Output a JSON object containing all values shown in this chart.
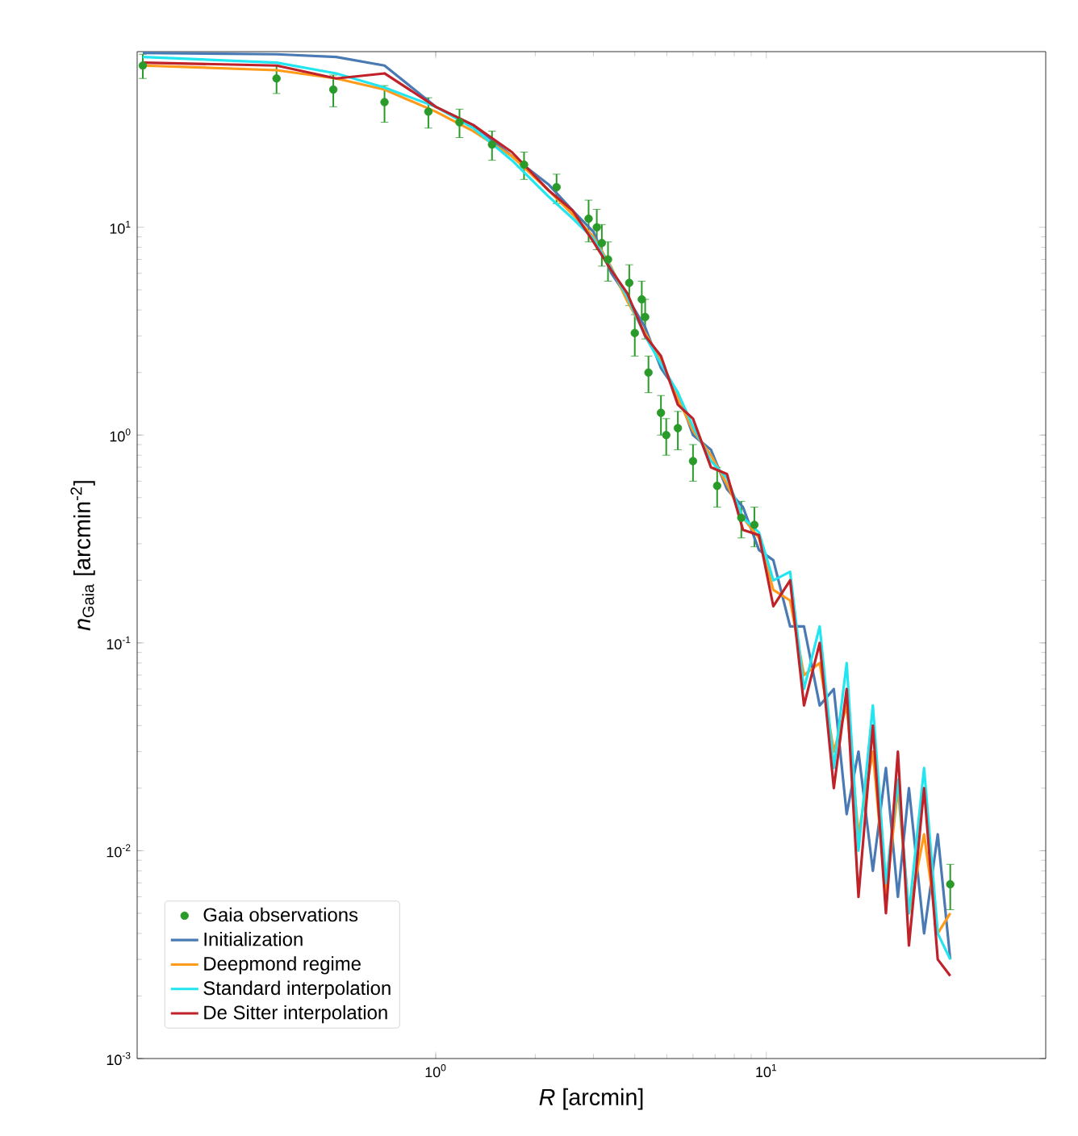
{
  "chart_data": {
    "type": "line",
    "xlabel": "*R* [arcmin]",
    "ylabel": "*n*$_{Gaia}$ [arcmin$^{-2}$]",
    "log": "xy",
    "grid": false,
    "legend": "bottom left",
    "xlim": [
      0.125,
      70
    ],
    "ylim": [
      0.001,
      70
    ],
    "xticks": [
      {
        "value": 1,
        "label": "10$^{0}$"
      },
      {
        "value": 10,
        "label": "10$^{1}$"
      }
    ],
    "yticks": [
      {
        "value": 0.001,
        "label": "10$^{-3}$"
      },
      {
        "value": 0.01,
        "label": "10$^{-2}$"
      },
      {
        "value": 0.1,
        "label": "10$^{-1}$"
      },
      {
        "value": 1,
        "label": "10$^{0}$"
      },
      {
        "value": 10,
        "label": "10$^{1}$"
      }
    ],
    "series": [
      {
        "name": "Gaia observations",
        "color": "#2a9a2a",
        "type": "scatter",
        "marker": "circle",
        "x": [
          0.13,
          0.33,
          0.49,
          0.7,
          0.95,
          1.18,
          1.48,
          1.85,
          2.32,
          2.9,
          3.07,
          3.18,
          3.32,
          3.85,
          4.2,
          4.3,
          4.0,
          4.4,
          4.8,
          5.4,
          4.98,
          6.0,
          7.1,
          8.4,
          9.2,
          36
        ],
        "values": [
          60,
          52,
          46,
          40,
          36,
          32,
          25,
          20,
          15.6,
          11,
          10,
          8.4,
          7.0,
          5.4,
          4.5,
          3.7,
          3.1,
          2.0,
          1.28,
          1.08,
          1.0,
          0.75,
          0.57,
          0.4,
          0.37,
          0.0069
        ],
        "errors": [
          [
            52,
            68
          ],
          [
            44,
            60
          ],
          [
            38,
            54
          ],
          [
            32,
            48
          ],
          [
            30,
            42
          ],
          [
            27,
            37
          ],
          [
            21,
            29
          ],
          [
            17,
            23
          ],
          [
            13,
            18
          ],
          [
            8.5,
            13.5
          ],
          [
            7.8,
            12.2
          ],
          [
            6.5,
            10.3
          ],
          [
            5.5,
            8.5
          ],
          [
            4.2,
            6.6
          ],
          [
            3.5,
            5.5
          ],
          [
            2.9,
            4.5
          ],
          [
            2.4,
            3.8
          ],
          [
            1.6,
            2.4
          ],
          [
            1.0,
            1.55
          ],
          [
            0.85,
            1.3
          ],
          [
            0.8,
            1.2
          ],
          [
            0.6,
            0.9
          ],
          [
            0.45,
            0.7
          ],
          [
            0.32,
            0.48
          ],
          [
            0.29,
            0.45
          ],
          [
            0.0052,
            0.0086
          ]
        ]
      },
      {
        "name": "Initialization",
        "color": "#4a7ab4",
        "x": [
          0.13,
          0.33,
          0.5,
          0.7,
          1.0,
          1.3,
          1.7,
          2.2,
          2.6,
          3.0,
          3.4,
          3.8,
          4.3,
          4.8,
          5.4,
          6.0,
          6.8,
          7.6,
          8.5,
          9.5,
          10.5,
          11.8,
          13,
          14.5,
          16,
          17.5,
          19,
          21,
          23,
          25,
          27,
          30,
          33,
          36
        ],
        "values": [
          69,
          68,
          66,
          60,
          38,
          31,
          22,
          16,
          12,
          9.5,
          6,
          4.6,
          3.3,
          2.1,
          1.6,
          1.0,
          0.85,
          0.55,
          0.45,
          0.28,
          0.25,
          0.12,
          0.12,
          0.05,
          0.06,
          0.015,
          0.03,
          0.008,
          0.025,
          0.006,
          0.02,
          0.004,
          0.012,
          0.003
        ]
      },
      {
        "name": "Deepmond regime",
        "color": "#ff9a1a",
        "x": [
          0.13,
          0.33,
          0.5,
          0.7,
          1.0,
          1.3,
          1.7,
          2.2,
          2.6,
          3.0,
          3.4,
          3.8,
          4.3,
          4.8,
          5.4,
          6.0,
          6.8,
          7.6,
          8.5,
          9.5,
          10.5,
          11.8,
          13,
          14.5,
          16,
          17.5,
          19,
          21,
          23,
          25,
          27,
          30,
          33,
          36
        ],
        "values": [
          60,
          57,
          52,
          46,
          36,
          29,
          22,
          15,
          11.5,
          9,
          6.4,
          4.4,
          3.1,
          2.3,
          1.5,
          1.05,
          0.8,
          0.58,
          0.4,
          0.32,
          0.18,
          0.16,
          0.07,
          0.08,
          0.03,
          0.05,
          0.012,
          0.03,
          0.006,
          0.02,
          0.005,
          0.012,
          0.004,
          0.005
        ]
      },
      {
        "name": "Standard interpolation",
        "color": "#22e5f0",
        "x": [
          0.13,
          0.33,
          0.5,
          0.7,
          1.0,
          1.3,
          1.7,
          2.2,
          2.6,
          3.0,
          3.4,
          3.8,
          4.3,
          4.8,
          5.4,
          6.0,
          6.8,
          7.6,
          8.5,
          9.5,
          10.5,
          11.8,
          13,
          14.5,
          16,
          17.5,
          19,
          21,
          23,
          25,
          27,
          30,
          33,
          36
        ],
        "values": [
          66,
          62,
          55,
          47,
          38,
          30,
          21,
          14,
          11,
          8.8,
          6.3,
          4.6,
          3.0,
          2.2,
          1.6,
          1.1,
          0.75,
          0.62,
          0.4,
          0.34,
          0.2,
          0.22,
          0.06,
          0.12,
          0.025,
          0.08,
          0.01,
          0.05,
          0.007,
          0.022,
          0.005,
          0.025,
          0.004,
          0.003
        ]
      },
      {
        "name": "De Sitter interpolation",
        "color": "#c0222a",
        "x": [
          0.13,
          0.33,
          0.5,
          0.7,
          1.0,
          1.3,
          1.7,
          2.2,
          2.6,
          3.0,
          3.4,
          3.8,
          4.3,
          4.8,
          5.4,
          6.0,
          6.8,
          7.6,
          8.5,
          9.5,
          10.5,
          11.8,
          13,
          14.5,
          16,
          17.5,
          19,
          21,
          23,
          25,
          27,
          30,
          33,
          36
        ],
        "values": [
          62,
          60,
          52,
          55,
          38,
          31,
          23,
          15,
          12,
          8.5,
          6.2,
          4.8,
          3.0,
          2.4,
          1.4,
          1.2,
          0.7,
          0.65,
          0.35,
          0.33,
          0.15,
          0.2,
          0.05,
          0.1,
          0.02,
          0.06,
          0.006,
          0.04,
          0.005,
          0.03,
          0.0035,
          0.02,
          0.003,
          0.0025
        ]
      }
    ]
  }
}
